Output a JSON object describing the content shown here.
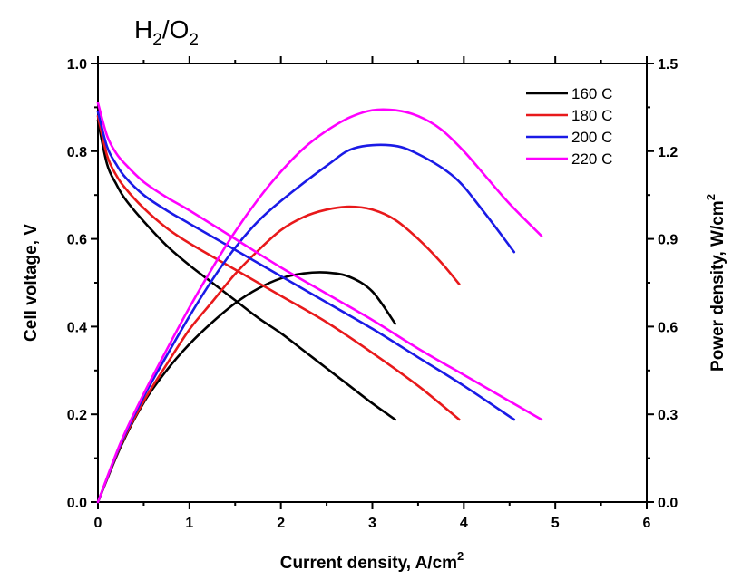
{
  "chart_data": {
    "type": "line",
    "title": "H/O",
    "title_main": "H",
    "title_sub1": "2",
    "title_sep": "/O",
    "title_sub2": "2",
    "xlabel": "Current density, A/cm",
    "xlabel_sup": "2",
    "ylabel": "Cell voltage, V",
    "y2label": "Power density, W/cm",
    "y2label_sup": "2",
    "xlim": [
      0,
      6
    ],
    "ylim": [
      0,
      1.0
    ],
    "y2lim": [
      0,
      1.5
    ],
    "x_ticks": [
      "0",
      "1",
      "2",
      "3",
      "4",
      "5",
      "6"
    ],
    "y_ticks": [
      "0.0",
      "0.2",
      "0.4",
      "0.6",
      "0.8",
      "1.0"
    ],
    "y2_ticks": [
      "0.0",
      "0.3",
      "0.6",
      "0.9",
      "1.2",
      "1.5"
    ],
    "grid": false,
    "legend_position": "top-right",
    "series": [
      {
        "name": "160 C",
        "color": "#000000",
        "voltage": {
          "x": [
            0,
            0.1,
            0.2,
            0.3,
            0.5,
            0.75,
            1.0,
            1.25,
            1.5,
            1.75,
            2.0,
            2.25,
            2.5,
            2.75,
            3.0,
            3.25
          ],
          "y": [
            0.87,
            0.77,
            0.725,
            0.69,
            0.64,
            0.585,
            0.54,
            0.5,
            0.46,
            0.42,
            0.385,
            0.345,
            0.305,
            0.265,
            0.225,
            0.188
          ]
        },
        "power": {
          "x": [
            0,
            0.25,
            0.5,
            0.75,
            1.0,
            1.25,
            1.5,
            1.75,
            2.0,
            2.25,
            2.5,
            2.75,
            3.0,
            3.25
          ],
          "y": [
            0,
            0.19,
            0.34,
            0.45,
            0.54,
            0.615,
            0.68,
            0.73,
            0.765,
            0.782,
            0.785,
            0.77,
            0.72,
            0.61
          ]
        }
      },
      {
        "name": "180 C",
        "color": "#e8191b",
        "voltage": {
          "x": [
            0,
            0.1,
            0.2,
            0.3,
            0.5,
            0.75,
            1.0,
            1.5,
            2.0,
            2.5,
            3.0,
            3.5,
            3.95
          ],
          "y": [
            0.88,
            0.79,
            0.745,
            0.715,
            0.67,
            0.625,
            0.59,
            0.53,
            0.47,
            0.41,
            0.34,
            0.265,
            0.188
          ]
        },
        "power": {
          "x": [
            0,
            0.25,
            0.5,
            0.75,
            1.0,
            1.25,
            1.5,
            1.75,
            2.0,
            2.25,
            2.5,
            2.75,
            3.0,
            3.25,
            3.5,
            3.75,
            3.95
          ],
          "y": [
            0,
            0.195,
            0.345,
            0.47,
            0.59,
            0.685,
            0.78,
            0.86,
            0.93,
            0.975,
            1.0,
            1.01,
            1.0,
            0.965,
            0.9,
            0.82,
            0.745
          ]
        }
      },
      {
        "name": "200 C",
        "color": "#1a1ae6",
        "voltage": {
          "x": [
            0,
            0.1,
            0.2,
            0.3,
            0.5,
            0.75,
            1.0,
            1.5,
            2.0,
            2.5,
            3.0,
            3.5,
            4.0,
            4.55
          ],
          "y": [
            0.89,
            0.81,
            0.77,
            0.74,
            0.7,
            0.665,
            0.635,
            0.575,
            0.515,
            0.455,
            0.395,
            0.33,
            0.265,
            0.188
          ]
        },
        "power": {
          "x": [
            0,
            0.25,
            0.5,
            0.75,
            1.0,
            1.25,
            1.5,
            1.75,
            2.0,
            2.5,
            2.8,
            3.2,
            3.5,
            3.9,
            4.2,
            4.55
          ],
          "y": [
            0,
            0.2,
            0.36,
            0.5,
            0.635,
            0.76,
            0.87,
            0.96,
            1.03,
            1.15,
            1.21,
            1.22,
            1.19,
            1.11,
            1.0,
            0.855
          ]
        }
      },
      {
        "name": "220 C",
        "color": "#ff00ff",
        "voltage": {
          "x": [
            0,
            0.1,
            0.2,
            0.3,
            0.5,
            0.75,
            1.0,
            1.5,
            2.0,
            2.5,
            3.0,
            3.5,
            4.0,
            4.5,
            4.85
          ],
          "y": [
            0.91,
            0.835,
            0.795,
            0.77,
            0.73,
            0.695,
            0.665,
            0.6,
            0.535,
            0.475,
            0.415,
            0.35,
            0.29,
            0.23,
            0.188
          ]
        },
        "power": {
          "x": [
            0,
            0.25,
            0.5,
            0.75,
            1.0,
            1.25,
            1.5,
            1.75,
            2.0,
            2.25,
            2.5,
            2.75,
            3.0,
            3.25,
            3.5,
            3.75,
            4.0,
            4.25,
            4.5,
            4.85
          ],
          "y": [
            0,
            0.205,
            0.37,
            0.52,
            0.665,
            0.8,
            0.925,
            1.035,
            1.13,
            1.21,
            1.27,
            1.315,
            1.34,
            1.34,
            1.32,
            1.275,
            1.2,
            1.11,
            1.02,
            0.91
          ]
        }
      }
    ]
  }
}
